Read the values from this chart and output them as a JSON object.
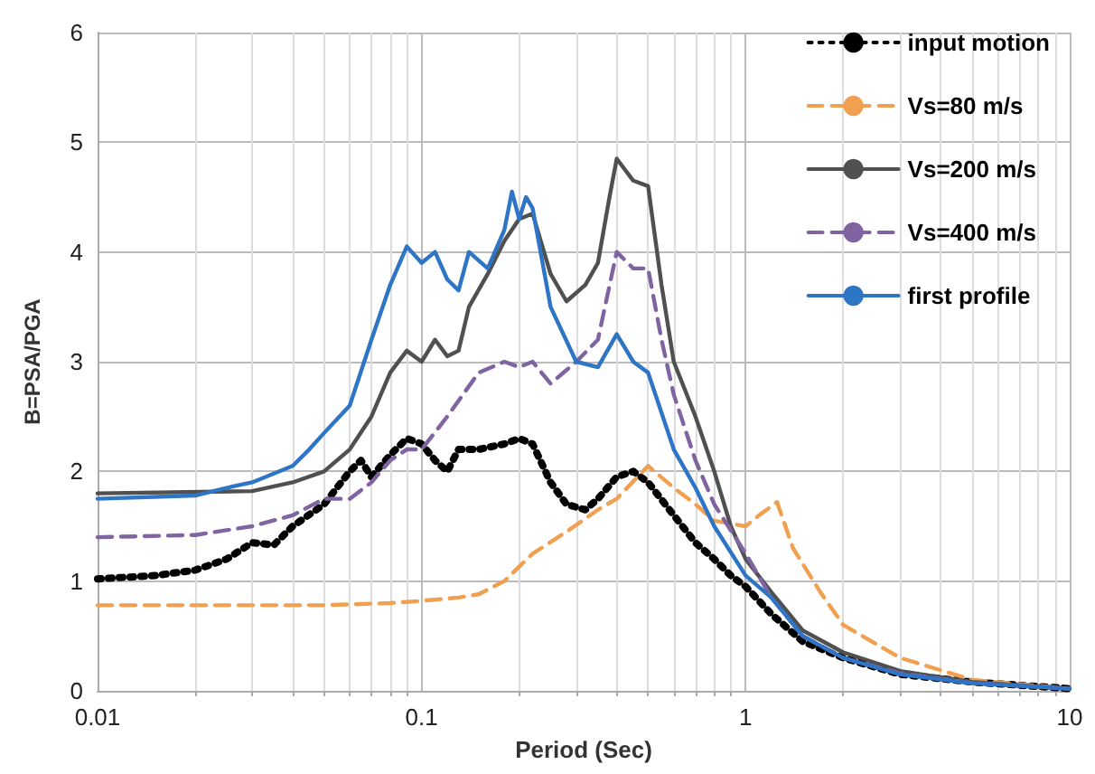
{
  "chart_data": {
    "type": "line",
    "xlabel": "Period (Sec)",
    "ylabel": "B=PSA/PGA",
    "log": "x",
    "xlim": [
      0.01,
      10
    ],
    "xticks": [
      0.01,
      0.1,
      1,
      10
    ],
    "ylim": [
      0,
      6
    ],
    "yticks": [
      0,
      1,
      2,
      3,
      4,
      5,
      6
    ],
    "grid": true,
    "legend": "top right",
    "marker": "none",
    "series": [
      {
        "name": "input motion",
        "color": "#000000",
        "line_style": "dotted",
        "x": [
          0.01,
          0.015,
          0.02,
          0.025,
          0.03,
          0.035,
          0.04,
          0.05,
          0.06,
          0.065,
          0.07,
          0.08,
          0.09,
          0.1,
          0.11,
          0.12,
          0.13,
          0.15,
          0.18,
          0.2,
          0.22,
          0.25,
          0.28,
          0.32,
          0.35,
          0.4,
          0.45,
          0.5,
          0.6,
          0.7,
          0.8,
          0.9,
          1.0,
          1.2,
          1.5,
          2,
          3,
          5,
          10
        ],
        "values": [
          1.02,
          1.05,
          1.1,
          1.2,
          1.35,
          1.33,
          1.5,
          1.7,
          2.0,
          2.1,
          1.95,
          2.15,
          2.3,
          2.25,
          2.1,
          2.0,
          2.2,
          2.2,
          2.25,
          2.3,
          2.25,
          1.9,
          1.7,
          1.65,
          1.75,
          1.95,
          2.0,
          1.9,
          1.6,
          1.35,
          1.2,
          1.05,
          0.95,
          0.7,
          0.45,
          0.3,
          0.15,
          0.08,
          0.02
        ]
      },
      {
        "name": "Vs=80 m/s",
        "color": "#f0a050",
        "line_style": "dashed",
        "x": [
          0.01,
          0.05,
          0.08,
          0.1,
          0.13,
          0.15,
          0.18,
          0.22,
          0.28,
          0.35,
          0.4,
          0.5,
          0.6,
          0.7,
          0.8,
          1.0,
          1.1,
          1.25,
          1.4,
          1.7,
          2,
          3,
          5,
          10
        ],
        "values": [
          0.78,
          0.78,
          0.8,
          0.82,
          0.85,
          0.88,
          1.0,
          1.25,
          1.45,
          1.65,
          1.75,
          2.05,
          1.85,
          1.7,
          1.55,
          1.5,
          1.6,
          1.72,
          1.3,
          0.9,
          0.6,
          0.3,
          0.1,
          0.02
        ]
      },
      {
        "name": "Vs=200 m/s",
        "color": "#505050",
        "line_style": "solid",
        "x": [
          0.01,
          0.03,
          0.04,
          0.05,
          0.06,
          0.07,
          0.08,
          0.09,
          0.1,
          0.11,
          0.12,
          0.13,
          0.14,
          0.16,
          0.18,
          0.2,
          0.22,
          0.25,
          0.28,
          0.32,
          0.35,
          0.38,
          0.4,
          0.45,
          0.5,
          0.55,
          0.6,
          0.7,
          0.8,
          0.9,
          1.0,
          1.2,
          1.5,
          2,
          3,
          5,
          10
        ],
        "values": [
          1.8,
          1.82,
          1.9,
          2.0,
          2.2,
          2.5,
          2.9,
          3.1,
          3.0,
          3.2,
          3.05,
          3.1,
          3.5,
          3.8,
          4.1,
          4.3,
          4.35,
          3.8,
          3.55,
          3.7,
          3.9,
          4.5,
          4.85,
          4.65,
          4.6,
          3.7,
          3.0,
          2.5,
          2.0,
          1.5,
          1.2,
          0.9,
          0.55,
          0.35,
          0.18,
          0.08,
          0.02
        ]
      },
      {
        "name": "Vs=400 m/s",
        "color": "#8064a2",
        "line_style": "dashed",
        "x": [
          0.01,
          0.02,
          0.03,
          0.04,
          0.05,
          0.06,
          0.07,
          0.08,
          0.09,
          0.1,
          0.12,
          0.15,
          0.18,
          0.2,
          0.22,
          0.25,
          0.3,
          0.35,
          0.4,
          0.45,
          0.5,
          0.55,
          0.6,
          0.7,
          0.8,
          1.0,
          1.2,
          1.5,
          2,
          3,
          5,
          10
        ],
        "values": [
          1.4,
          1.42,
          1.5,
          1.6,
          1.75,
          1.75,
          1.9,
          2.1,
          2.2,
          2.2,
          2.5,
          2.9,
          3.0,
          2.95,
          3.0,
          2.8,
          3.0,
          3.2,
          4.0,
          3.85,
          3.85,
          3.2,
          2.7,
          2.1,
          1.7,
          1.25,
          0.85,
          0.5,
          0.3,
          0.16,
          0.07,
          0.02
        ]
      },
      {
        "name": "first profile",
        "color": "#2e75c6",
        "line_style": "solid",
        "x": [
          0.01,
          0.02,
          0.025,
          0.03,
          0.04,
          0.045,
          0.05,
          0.06,
          0.07,
          0.08,
          0.09,
          0.1,
          0.11,
          0.12,
          0.13,
          0.14,
          0.16,
          0.18,
          0.19,
          0.2,
          0.21,
          0.22,
          0.25,
          0.3,
          0.35,
          0.4,
          0.45,
          0.5,
          0.6,
          0.7,
          0.8,
          1.0,
          1.2,
          1.5,
          2,
          3,
          5,
          10
        ],
        "values": [
          1.75,
          1.78,
          1.85,
          1.9,
          2.05,
          2.2,
          2.35,
          2.6,
          3.2,
          3.7,
          4.05,
          3.9,
          4.0,
          3.75,
          3.65,
          4.0,
          3.85,
          4.2,
          4.55,
          4.3,
          4.5,
          4.4,
          3.5,
          3.0,
          2.95,
          3.25,
          3.0,
          2.9,
          2.2,
          1.85,
          1.5,
          1.05,
          0.85,
          0.5,
          0.3,
          0.15,
          0.07,
          0.02
        ]
      }
    ]
  }
}
